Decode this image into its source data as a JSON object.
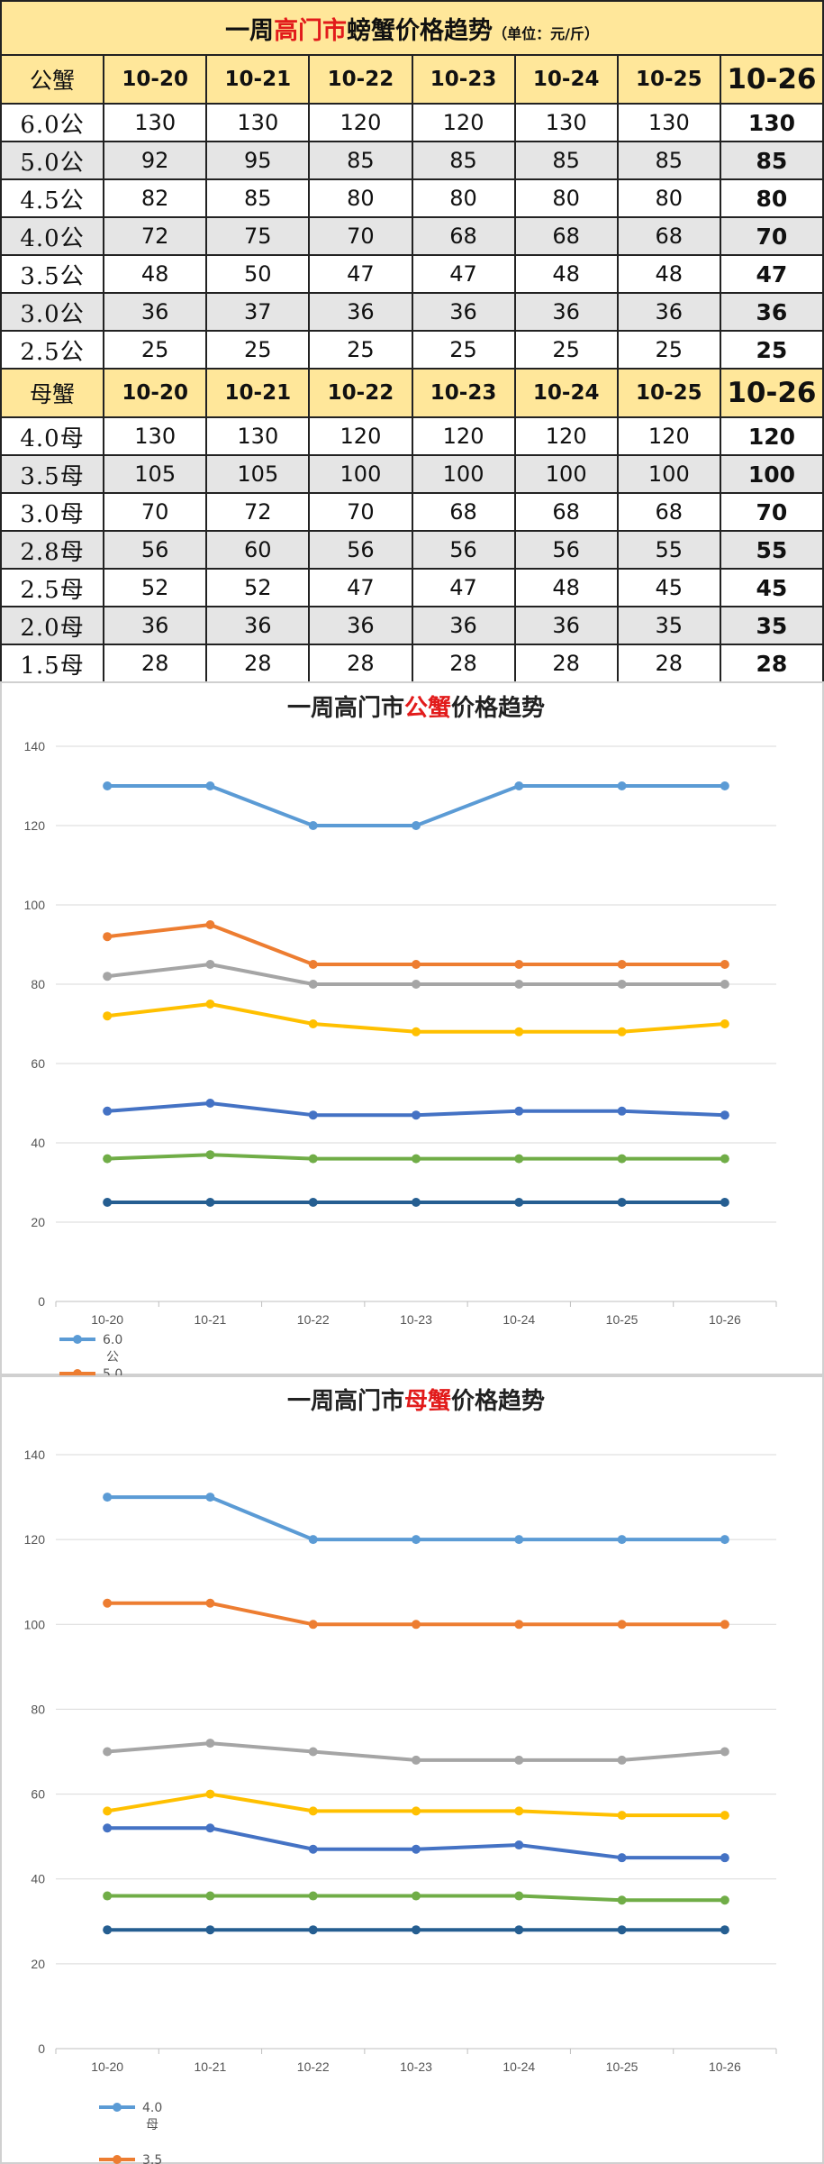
{
  "table": {
    "title_pre": "一周",
    "title_highlight": "高门市",
    "title_post": "螃蟹价格趋势",
    "unit": "（单位：元/斤）",
    "male_header": [
      "公蟹",
      "10-20",
      "10-21",
      "10-22",
      "10-23",
      "10-24",
      "10-25",
      "10-26"
    ],
    "male_rows": [
      [
        "6.0公",
        "130",
        "130",
        "120",
        "120",
        "130",
        "130",
        "130"
      ],
      [
        "5.0公",
        "92",
        "95",
        "85",
        "85",
        "85",
        "85",
        "85"
      ],
      [
        "4.5公",
        "82",
        "85",
        "80",
        "80",
        "80",
        "80",
        "80"
      ],
      [
        "4.0公",
        "72",
        "75",
        "70",
        "68",
        "68",
        "68",
        "70"
      ],
      [
        "3.5公",
        "48",
        "50",
        "47",
        "47",
        "48",
        "48",
        "47"
      ],
      [
        "3.0公",
        "36",
        "37",
        "36",
        "36",
        "36",
        "36",
        "36"
      ],
      [
        "2.5公",
        "25",
        "25",
        "25",
        "25",
        "25",
        "25",
        "25"
      ]
    ],
    "female_header": [
      "母蟹",
      "10-20",
      "10-21",
      "10-22",
      "10-23",
      "10-24",
      "10-25",
      "10-26"
    ],
    "female_rows": [
      [
        "4.0母",
        "130",
        "130",
        "120",
        "120",
        "120",
        "120",
        "120"
      ],
      [
        "3.5母",
        "105",
        "105",
        "100",
        "100",
        "100",
        "100",
        "100"
      ],
      [
        "3.0母",
        "70",
        "72",
        "70",
        "68",
        "68",
        "68",
        "70"
      ],
      [
        "2.8母",
        "56",
        "60",
        "56",
        "56",
        "56",
        "55",
        "55"
      ],
      [
        "2.5母",
        "52",
        "52",
        "47",
        "47",
        "48",
        "45",
        "45"
      ],
      [
        "2.0母",
        "36",
        "36",
        "36",
        "36",
        "36",
        "35",
        "35"
      ],
      [
        "1.5母",
        "28",
        "28",
        "28",
        "28",
        "28",
        "28",
        "28"
      ]
    ]
  },
  "chart_data": [
    {
      "type": "line",
      "title_pre": "一周高门市",
      "title_highlight": "公蟹",
      "title_post": "价格趋势",
      "x": [
        "10-20",
        "10-21",
        "10-22",
        "10-23",
        "10-24",
        "10-25",
        "10-26"
      ],
      "ylim": [
        0,
        140
      ],
      "yticks": [
        0,
        20,
        40,
        60,
        80,
        100,
        120,
        140
      ],
      "grid": true,
      "legend_position": "bottom-left",
      "legend_visible": [
        {
          "marker_color": "#5b9bd5",
          "text": "6.0",
          "text2": "公"
        },
        {
          "marker_color": "#ed7d31",
          "text": "5.0",
          "text2": ""
        }
      ],
      "series": [
        {
          "color": "#5b9bd5",
          "values": [
            130,
            130,
            120,
            120,
            130,
            130,
            130
          ]
        },
        {
          "color": "#ed7d31",
          "values": [
            92,
            95,
            85,
            85,
            85,
            85,
            85
          ]
        },
        {
          "color": "#a5a5a5",
          "values": [
            82,
            85,
            80,
            80,
            80,
            80,
            80
          ]
        },
        {
          "color": "#ffc000",
          "values": [
            72,
            75,
            70,
            68,
            68,
            68,
            70
          ]
        },
        {
          "color": "#4472c4",
          "values": [
            48,
            50,
            47,
            47,
            48,
            48,
            47
          ]
        },
        {
          "color": "#70ad47",
          "values": [
            36,
            37,
            36,
            36,
            36,
            36,
            36
          ]
        },
        {
          "color": "#255e91",
          "values": [
            25,
            25,
            25,
            25,
            25,
            25,
            25
          ]
        }
      ]
    },
    {
      "type": "line",
      "title_pre": "一周高门市",
      "title_highlight": "母蟹",
      "title_post": "价格趋势",
      "x": [
        "10-20",
        "10-21",
        "10-22",
        "10-23",
        "10-24",
        "10-25",
        "10-26"
      ],
      "ylim": [
        0,
        140
      ],
      "yticks": [
        0,
        20,
        40,
        60,
        80,
        100,
        120,
        140
      ],
      "grid": true,
      "legend_position": "bottom-left",
      "legend_visible": [
        {
          "marker_color": "#5b9bd5",
          "text": "4.0",
          "text2": "母"
        },
        {
          "marker_color": "#ed7d31",
          "text": "3.5",
          "text2": ""
        }
      ],
      "series": [
        {
          "color": "#5b9bd5",
          "values": [
            130,
            130,
            120,
            120,
            120,
            120,
            120
          ]
        },
        {
          "color": "#ed7d31",
          "values": [
            105,
            105,
            100,
            100,
            100,
            100,
            100
          ]
        },
        {
          "color": "#a5a5a5",
          "values": [
            70,
            72,
            70,
            68,
            68,
            68,
            70
          ]
        },
        {
          "color": "#ffc000",
          "values": [
            56,
            60,
            56,
            56,
            56,
            55,
            55
          ]
        },
        {
          "color": "#4472c4",
          "values": [
            52,
            52,
            47,
            47,
            48,
            45,
            45
          ]
        },
        {
          "color": "#70ad47",
          "values": [
            36,
            36,
            36,
            36,
            36,
            35,
            35
          ]
        },
        {
          "color": "#255e91",
          "values": [
            28,
            28,
            28,
            28,
            28,
            28,
            28
          ]
        }
      ]
    }
  ]
}
